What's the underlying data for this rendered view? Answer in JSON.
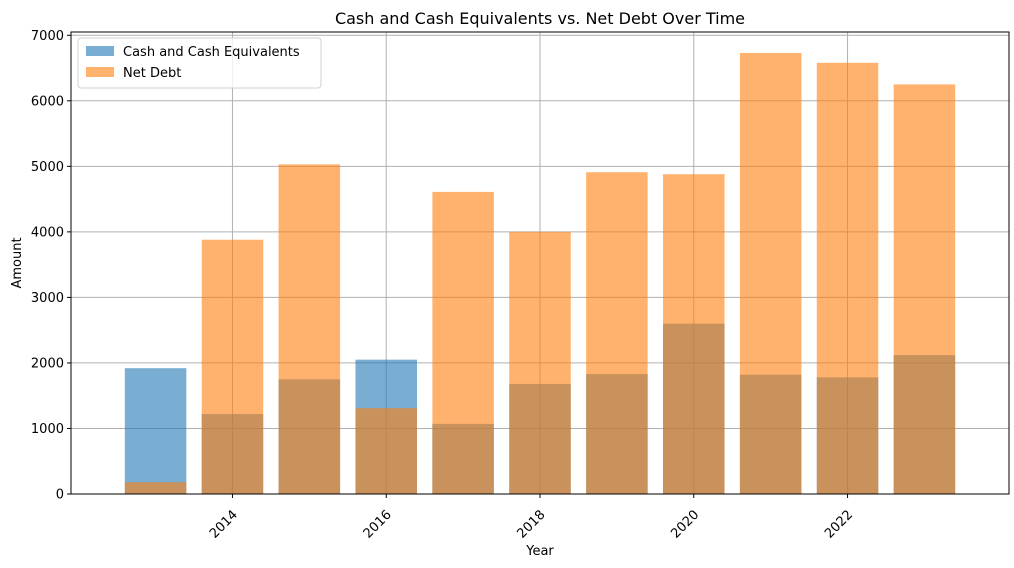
{
  "chart_data": {
    "type": "bar",
    "title": "Cash and Cash Equivalents vs. Net Debt Over Time",
    "xlabel": "Year",
    "ylabel": "Amount",
    "x": [
      2013,
      2014,
      2015,
      2016,
      2017,
      2018,
      2019,
      2020,
      2021,
      2022,
      2023
    ],
    "xticks": [
      "2014",
      "2016",
      "2018",
      "2020",
      "2022"
    ],
    "yticks": [
      "0",
      "1000",
      "2000",
      "3000",
      "4000",
      "5000",
      "6000",
      "7000"
    ],
    "ylim": [
      0,
      7050
    ],
    "xlim": [
      2011.9,
      2024.1
    ],
    "grid": true,
    "legend_position": "top-left",
    "series": [
      {
        "name": "Cash and Cash Equivalents",
        "color": "#1f77b4",
        "alpha": 0.6,
        "values": [
          1920,
          1220,
          1750,
          2050,
          1070,
          1680,
          1830,
          2600,
          1820,
          1780,
          2120
        ]
      },
      {
        "name": "Net Debt",
        "color": "#ff7f0e",
        "alpha": 0.6,
        "values": [
          180,
          3880,
          5030,
          1310,
          4610,
          4000,
          4910,
          4880,
          6730,
          6580,
          6250
        ]
      }
    ]
  }
}
